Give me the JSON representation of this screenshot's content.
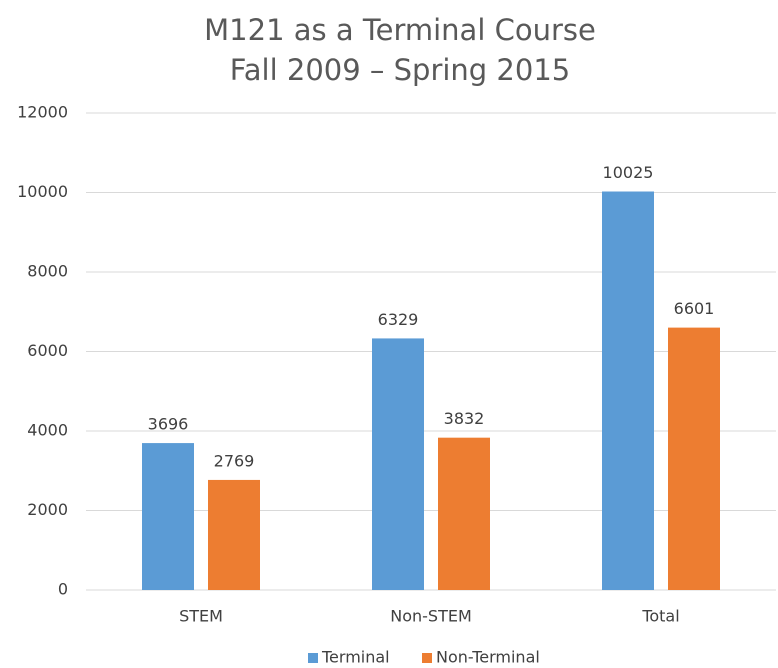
{
  "chart_data": {
    "type": "bar",
    "title": "M121 as a Terminal Course",
    "subtitle": "Fall 2009 – Spring 2015",
    "categories": [
      "STEM",
      "Non-STEM",
      "Total"
    ],
    "series": [
      {
        "name": "Terminal",
        "color": "#5b9bd5",
        "values": [
          3696,
          6329,
          10025
        ]
      },
      {
        "name": "Non-Terminal",
        "color": "#ed7d31",
        "values": [
          2769,
          3832,
          6601
        ]
      }
    ],
    "ylim": [
      0,
      12000
    ],
    "yticks": [
      0,
      2000,
      4000,
      6000,
      8000,
      10000,
      12000
    ],
    "grid": true,
    "legend": "bottom",
    "data_labels": true
  }
}
